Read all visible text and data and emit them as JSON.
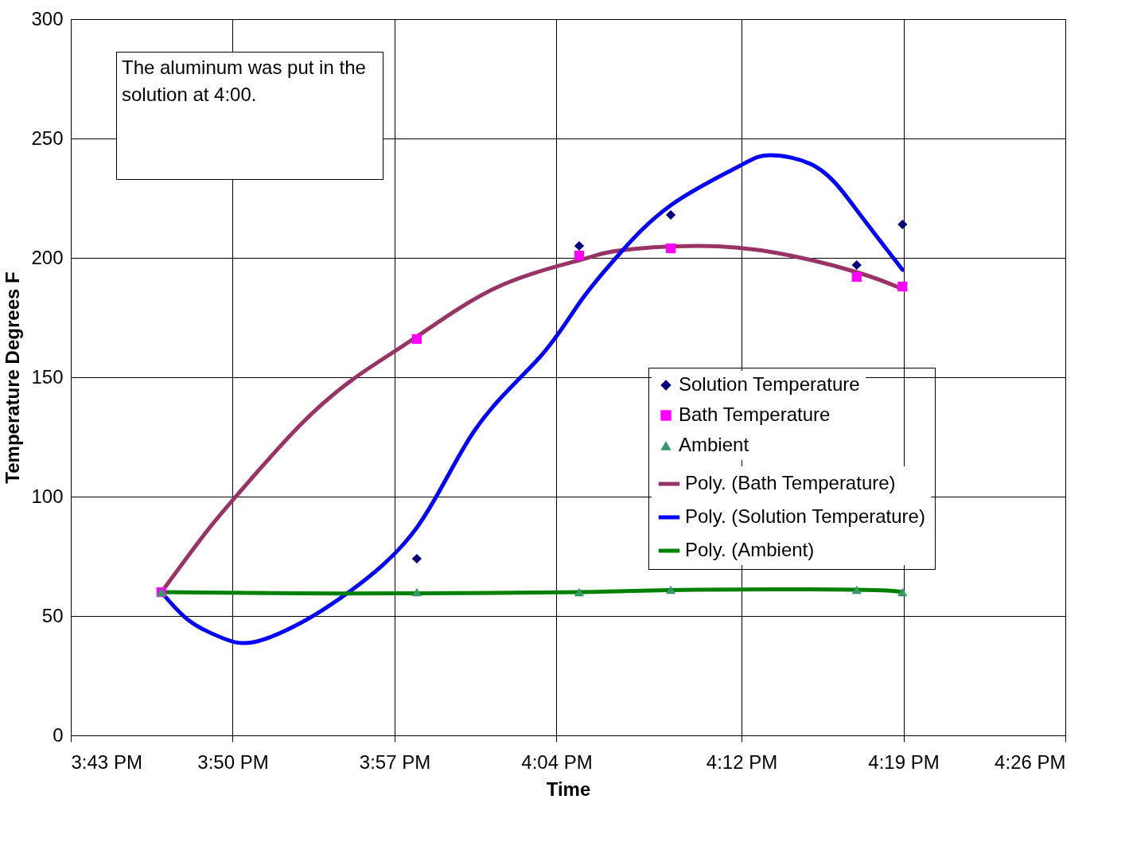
{
  "chart_data": {
    "type": "scatter",
    "xlabel": "Time",
    "ylabel": "Temperature Degrees F",
    "xlim": [
      15.71667,
      16.43333
    ],
    "xticks": [
      {
        "value": 15.71667,
        "label": "3:43 PM"
      },
      {
        "value": 15.83333,
        "label": "3:50 PM"
      },
      {
        "value": 15.95,
        "label": "3:57 PM"
      },
      {
        "value": 16.06667,
        "label": "4:04 PM"
      },
      {
        "value": 16.2,
        "label": "4:12 PM"
      },
      {
        "value": 16.31667,
        "label": "4:19 PM"
      },
      {
        "value": 16.43333,
        "label": "4:26 PM"
      }
    ],
    "ylim": [
      0,
      300
    ],
    "yticks": [
      0,
      50,
      100,
      150,
      200,
      250,
      300
    ],
    "grid": true,
    "legend": "right",
    "line_style": "solid",
    "annotations": [
      "The aluminum was put in the solution at 4:00."
    ],
    "x": [
      15.782,
      15.966,
      16.083,
      16.149,
      16.283,
      16.316
    ],
    "series": [
      {
        "name": "Solution Temperature",
        "marker": "diamond",
        "color": "#000080",
        "values": [
          null,
          74,
          205,
          218,
          197,
          214
        ]
      },
      {
        "name": "Bath Temperature",
        "marker": "square",
        "color": "#ff00ff",
        "values": [
          60,
          166,
          201,
          204,
          192,
          188
        ]
      },
      {
        "name": "Ambient",
        "marker": "triangle",
        "color": "#339966",
        "values": [
          60,
          60,
          60,
          61,
          61,
          60
        ]
      },
      {
        "name": "Poly. (Bath Temperature)",
        "type": "line",
        "color": "#993366",
        "x": [
          15.782,
          15.814,
          15.84,
          15.882,
          15.922,
          15.966,
          16.025,
          16.083,
          16.111,
          16.168,
          16.226,
          16.283,
          16.316
        ],
        "values": [
          60,
          85,
          103,
          130,
          150,
          167,
          188,
          199,
          203,
          205,
          202,
          194,
          187
        ]
      },
      {
        "name": "Poly. (Solution Temperature)",
        "type": "line",
        "color": "#0000ff",
        "x": [
          15.782,
          15.802,
          15.825,
          15.848,
          15.882,
          15.917,
          15.966,
          16.008,
          16.054,
          16.083,
          16.111,
          16.149,
          16.197,
          16.22,
          16.254,
          16.283,
          16.316
        ],
        "values": [
          60,
          48,
          41,
          39,
          47,
          60,
          87,
          128,
          158,
          181,
          201,
          222,
          238,
          243,
          238,
          220,
          195
        ]
      },
      {
        "name": "Poly. (Ambient)",
        "type": "line",
        "color": "#008000",
        "x": [
          15.782,
          15.882,
          15.966,
          16.083,
          16.168,
          16.283,
          16.316
        ],
        "values": [
          60,
          59.5,
          59.5,
          60,
          61,
          61,
          60
        ]
      }
    ]
  }
}
